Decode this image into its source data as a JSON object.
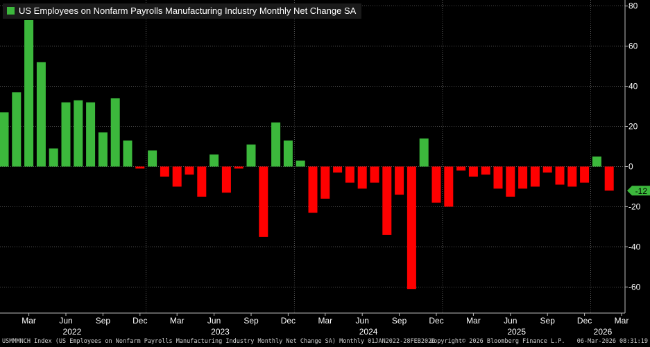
{
  "chart_data": {
    "type": "bar",
    "title": "US Employees on Nonfarm Payrolls Manufacturing Industry Monthly Net Change SA",
    "series_name": "US Employees on Nonfarm Payrolls Manufacturing Industry Monthly Net Change SA",
    "positive_color": "#3cb83c",
    "negative_color": "#ff0000",
    "last_value_label": "-12",
    "last_value_bg": "#3cb83c",
    "y_ticks": [
      80,
      60,
      40,
      20,
      0,
      -20,
      -40,
      -60
    ],
    "ylim": [
      -73,
      83
    ],
    "x_month_labels": [
      "Mar",
      "Jun",
      "Sep",
      "Dec",
      "Mar",
      "Jun",
      "Sep",
      "Dec",
      "Mar",
      "Jun",
      "Sep",
      "Dec",
      "Mar",
      "Jun",
      "Sep",
      "Dec",
      "Mar"
    ],
    "x_year_labels": [
      "2022",
      "2023",
      "2024",
      "2025",
      "2026"
    ],
    "categories": [
      "Jan 2022",
      "Feb 2022",
      "Mar 2022",
      "Apr 2022",
      "May 2022",
      "Jun 2022",
      "Jul 2022",
      "Aug 2022",
      "Sep 2022",
      "Oct 2022",
      "Nov 2022",
      "Dec 2022",
      "Jan 2023",
      "Feb 2023",
      "Mar 2023",
      "Apr 2023",
      "May 2023",
      "Jun 2023",
      "Jul 2023",
      "Aug 2023",
      "Sep 2023",
      "Oct 2023",
      "Nov 2023",
      "Dec 2023",
      "Jan 2024",
      "Feb 2024",
      "Mar 2024",
      "Apr 2024",
      "May 2024",
      "Jun 2024",
      "Jul 2024",
      "Aug 2024",
      "Sep 2024",
      "Oct 2024",
      "Nov 2024",
      "Dec 2024",
      "Jan 2025",
      "Feb 2025",
      "Mar 2025",
      "Apr 2025",
      "May 2025",
      "Jun 2025",
      "Jul 2025",
      "Aug 2025",
      "Sep 2025",
      "Oct 2025",
      "Nov 2025",
      "Dec 2025",
      "Jan 2026",
      "Feb 2026"
    ],
    "values": [
      27,
      37,
      73,
      52,
      9,
      32,
      33,
      32,
      17,
      34,
      13,
      -1,
      8,
      -5,
      -10,
      -4,
      -15,
      6,
      -13,
      -1,
      11,
      -35,
      22,
      13,
      3,
      -23,
      -16,
      -3,
      -8,
      -11,
      -8,
      -34,
      -14,
      -61,
      14,
      -18,
      -20,
      -2,
      -5,
      -4,
      -11,
      -15,
      -11,
      -10,
      -3,
      -9,
      -10,
      -8,
      5,
      -12
    ]
  },
  "footer": {
    "left": "USMMMNCH Index (US Employees on Nonfarm Payrolls Manufacturing Industry Monthly Net Change SA) Monthly 01JAN2022-28FEB2026",
    "center": "Copyright© 2026 Bloomberg Finance L.P.",
    "right": "06-Mar-2026 08:31:19"
  }
}
